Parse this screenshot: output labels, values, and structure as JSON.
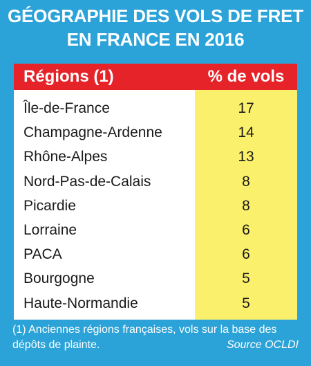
{
  "chart_data": {
    "type": "table",
    "title": "GÉOGRAPHIE DES VOLS DE FRET EN FRANCE EN 2016",
    "title_lines": [
      "GÉOGRAPHIE DES VOLS DE FRET",
      "EN FRANCE EN 2016"
    ],
    "columns": [
      "Régions (1)",
      "% de vols"
    ],
    "rows": [
      {
        "region": "Île-de-France",
        "value": 17
      },
      {
        "region": "Champagne-Ardenne",
        "value": 14
      },
      {
        "region": "Rhône-Alpes",
        "value": 13
      },
      {
        "region": "Nord-Pas-de-Calais",
        "value": 8
      },
      {
        "region": "Picardie",
        "value": 8
      },
      {
        "region": "Lorraine",
        "value": 6
      },
      {
        "region": "PACA",
        "value": 6
      },
      {
        "region": "Bourgogne",
        "value": 5
      },
      {
        "region": "Haute-Normandie",
        "value": 5
      }
    ],
    "footnote": "(1) Anciennes régions françaises, vols sur la base des dépôts de plainte.",
    "source": "Source OCLDI"
  },
  "colors": {
    "background": "#2ba3d8",
    "header": "#e52329",
    "value_column": "#fbf06b",
    "table": "#ffffff"
  }
}
